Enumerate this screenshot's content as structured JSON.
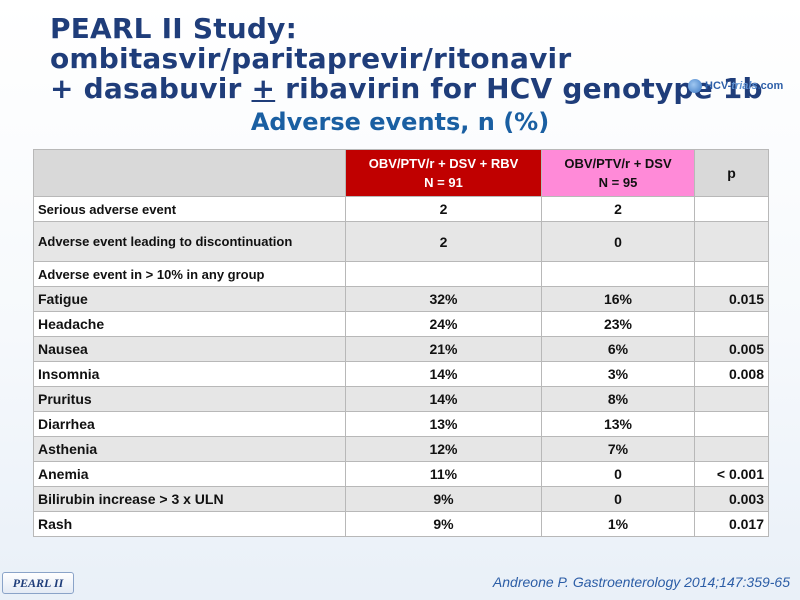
{
  "title": {
    "line1": "PEARL II Study: ombitasvir/paritaprevir/ritonavir",
    "line2_prefix": "+ dasabuvir ",
    "line2_underlined": "+",
    "line2_suffix": " ribavirin for HCV genotype 1b"
  },
  "logo": {
    "text_a": "HCV-",
    "text_b": "trials",
    "text_c": ".com"
  },
  "subtitle": "Adverse events, n (%)",
  "table": {
    "headers": {
      "col1_line1": "OBV/PTV/r + DSV + RBV",
      "col1_line2": "N = 91",
      "col2_line1": "OBV/PTV/r + DSV",
      "col2_line2": "N = 95",
      "p": "p"
    },
    "rows": [
      {
        "label": "Serious adverse event",
        "a": "2",
        "b": "2",
        "p": ""
      },
      {
        "label": "Adverse event leading to discontinuation",
        "a": "2",
        "b": "0",
        "p": ""
      },
      {
        "label": "Adverse event in > 10% in any group",
        "a": "",
        "b": "",
        "p": ""
      },
      {
        "label": "Fatigue",
        "a": "32%",
        "b": "16%",
        "p": "0.015"
      },
      {
        "label": "Headache",
        "a": "24%",
        "b": "23%",
        "p": ""
      },
      {
        "label": "Nausea",
        "a": "21%",
        "b": "6%",
        "p": "0.005"
      },
      {
        "label": "Insomnia",
        "a": "14%",
        "b": "3%",
        "p": "0.008"
      },
      {
        "label": "Pruritus",
        "a": "14%",
        "b": "8%",
        "p": ""
      },
      {
        "label": "Diarrhea",
        "a": "13%",
        "b": "13%",
        "p": ""
      },
      {
        "label": "Asthenia",
        "a": "12%",
        "b": "7%",
        "p": ""
      },
      {
        "label": "Anemia",
        "a": "11%",
        "b": "0",
        "p": "< 0.001"
      },
      {
        "label": "Bilirubin increase > 3 x ULN",
        "a": "9%",
        "b": "0",
        "p": "0.003"
      },
      {
        "label": "Rash",
        "a": "9%",
        "b": "1%",
        "p": "0.017"
      }
    ]
  },
  "footer": {
    "badge": "PEARL II",
    "reference": "Andreone P. Gastroenterology 2014;147:359-65"
  },
  "colors": {
    "title": "#1f3d7a",
    "subtitle": "#1a5fa2",
    "header_rbv": "#c00000",
    "header_dsv": "#ff8ad8",
    "header_grey": "#d9d9d9",
    "row_alt": "#e6e6e6"
  }
}
